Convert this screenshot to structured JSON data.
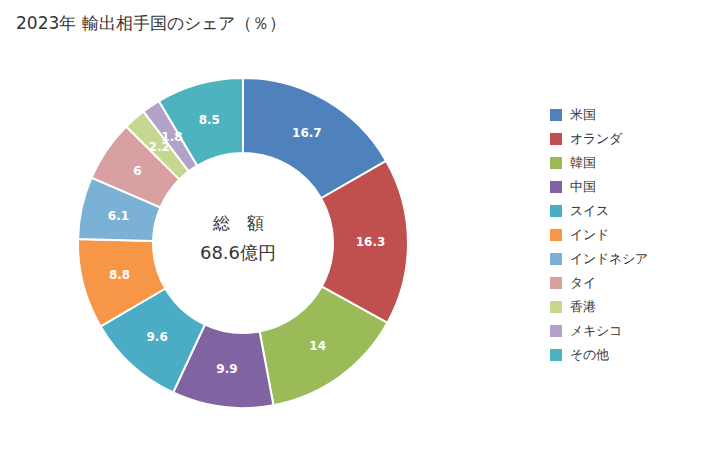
{
  "chart_data": {
    "type": "pie",
    "title": "2023年 輸出相手国のシェア（％）",
    "categories": [
      "米国",
      "オランダ",
      "韓国",
      "中国",
      "スイス",
      "インド",
      "インドネシア",
      "タイ",
      "香港",
      "メキシコ",
      "その他"
    ],
    "values": [
      16.7,
      16.3,
      14.0,
      9.9,
      9.6,
      8.8,
      6.1,
      6.0,
      2.2,
      1.8,
      8.5
    ],
    "colors": [
      "#4F81BD",
      "#C0504D",
      "#9BBB59",
      "#8064A2",
      "#4BACC6",
      "#F79646",
      "#7AB1D4",
      "#D8A0A0",
      "#C6D88F",
      "#B3A2C7",
      "#4DB3BF"
    ],
    "annotations": [
      "総　額",
      "68.6億円"
    ],
    "data_labels": true,
    "legend": "right"
  }
}
